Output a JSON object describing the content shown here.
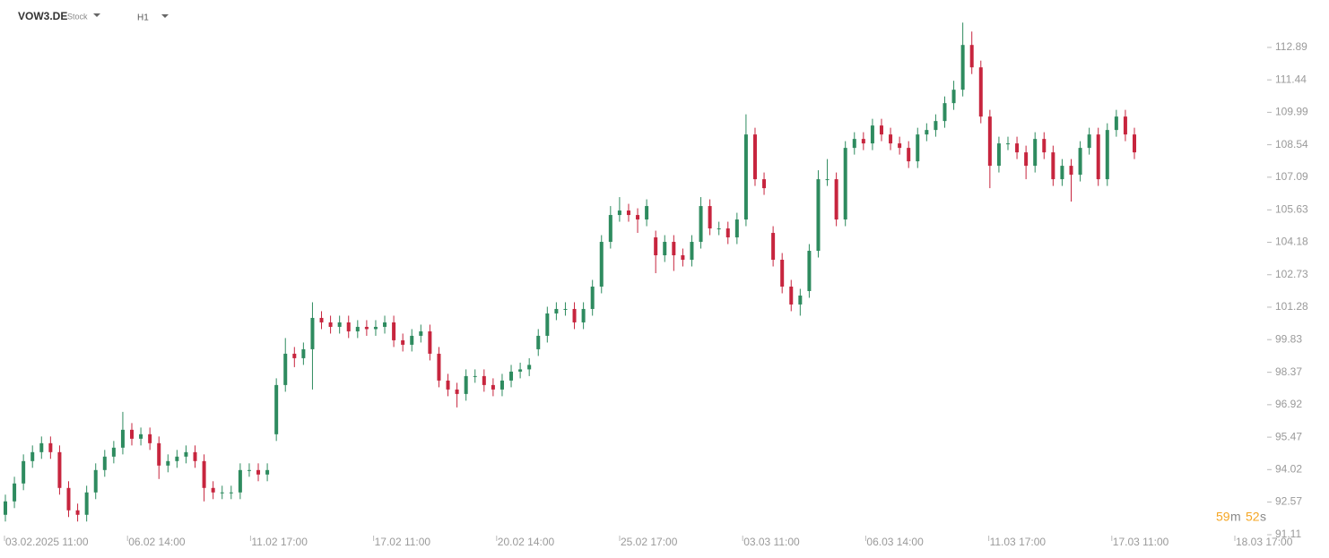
{
  "header": {
    "symbol": "VOW3.DE",
    "kind": "Stock",
    "timeframe": "H1"
  },
  "countdown": {
    "minutes": "59",
    "m": "m",
    "seconds": "52",
    "s": "s"
  },
  "chart_data": {
    "type": "candlestick",
    "up_color": "#2e8b5f",
    "down_color": "#c7253e",
    "ylim": [
      91.11,
      115.01
    ],
    "yticks": [
      91.11,
      92.57,
      94.02,
      95.47,
      96.92,
      98.37,
      99.83,
      101.28,
      102.73,
      104.18,
      105.63,
      107.09,
      108.54,
      109.99,
      111.44,
      112.89
    ],
    "x_labels": [
      "03.02.2025  11:00",
      "06.02  14:00",
      "11.02  17:00",
      "17.02  11:00",
      "20.02  14:00",
      "25.02  17:00",
      "03.03  11:00",
      "06.03  14:00",
      "11.03  17:00",
      "17.03  11:00",
      "18.03  17:00"
    ],
    "open": [
      92.0,
      92.6,
      93.4,
      94.4,
      94.8,
      95.2,
      94.8,
      93.2,
      92.2,
      92.0,
      93.0,
      94.0,
      94.6,
      95.0,
      95.8,
      95.4,
      95.6,
      95.2,
      94.2,
      94.4,
      94.6,
      94.8,
      94.4,
      93.2,
      93.0,
      93.0,
      93.0,
      94.0,
      94.0,
      93.8,
      95.6,
      97.8,
      99.2,
      99.0,
      99.4,
      100.8,
      100.6,
      100.4,
      100.6,
      100.2,
      100.4,
      100.3,
      100.4,
      100.6,
      99.8,
      99.6,
      100.0,
      100.2,
      99.2,
      98.0,
      97.6,
      97.4,
      98.2,
      98.2,
      97.8,
      97.6,
      98.0,
      98.4,
      98.5,
      99.4,
      100.0,
      101.0,
      101.2,
      101.2,
      100.6,
      101.2,
      102.2,
      104.2,
      105.4,
      105.6,
      105.4,
      105.2,
      104.4,
      103.6,
      104.2,
      103.6,
      103.4,
      104.2,
      105.8,
      104.8,
      104.8,
      104.4,
      105.2,
      109.0,
      107.0,
      104.6,
      103.4,
      102.2,
      101.4,
      102.0,
      103.8,
      107.0,
      107.0,
      105.2,
      108.4,
      108.8,
      108.6,
      109.4,
      109.0,
      108.6,
      108.4,
      107.8,
      109.0,
      109.2,
      109.6,
      110.4,
      111.0,
      113.0,
      112.0,
      109.8,
      107.6,
      108.6,
      108.6,
      108.2,
      107.6,
      108.8,
      108.2,
      107.0,
      107.6,
      107.2,
      108.4,
      109.0,
      107.0,
      109.2,
      109.8,
      109.0
    ],
    "high": [
      92.9,
      93.7,
      94.7,
      95.1,
      95.5,
      95.5,
      95.1,
      93.5,
      92.5,
      93.3,
      94.3,
      94.9,
      95.3,
      96.6,
      96.1,
      95.9,
      95.9,
      95.5,
      94.7,
      94.9,
      95.1,
      95.1,
      94.7,
      93.5,
      93.3,
      93.3,
      94.3,
      94.3,
      94.3,
      94.3,
      98.1,
      99.9,
      99.5,
      99.7,
      101.5,
      101.1,
      100.9,
      100.9,
      100.9,
      100.7,
      100.7,
      100.7,
      100.9,
      100.9,
      100.1,
      100.3,
      100.5,
      100.5,
      99.5,
      98.3,
      97.9,
      98.5,
      98.5,
      98.5,
      98.1,
      98.3,
      98.7,
      98.8,
      99.0,
      100.3,
      101.3,
      101.5,
      101.5,
      101.5,
      101.5,
      102.5,
      104.5,
      105.8,
      106.2,
      105.9,
      105.7,
      106.1,
      104.7,
      104.5,
      104.5,
      103.9,
      104.5,
      106.2,
      106.1,
      105.1,
      105.1,
      105.5,
      109.9,
      109.3,
      107.3,
      104.9,
      103.7,
      102.5,
      102.1,
      104.1,
      107.4,
      107.9,
      107.3,
      108.7,
      109.1,
      109.1,
      109.7,
      109.7,
      109.3,
      108.9,
      108.7,
      109.3,
      109.5,
      109.9,
      110.7,
      111.4,
      114.0,
      113.6,
      112.3,
      110.1,
      108.9,
      108.9,
      108.9,
      108.5,
      109.1,
      109.1,
      108.5,
      107.9,
      107.9,
      108.7,
      109.3,
      109.3,
      109.5,
      110.1,
      110.1,
      109.3
    ],
    "low": [
      91.7,
      92.3,
      93.1,
      94.1,
      94.5,
      94.5,
      92.9,
      91.9,
      91.7,
      91.7,
      92.7,
      93.7,
      94.3,
      94.7,
      95.1,
      95.1,
      94.9,
      93.6,
      93.9,
      94.1,
      94.3,
      94.1,
      92.6,
      92.7,
      92.7,
      92.7,
      92.7,
      93.7,
      93.5,
      93.5,
      95.3,
      97.5,
      98.6,
      98.7,
      97.6,
      100.3,
      100.1,
      100.1,
      99.9,
      99.9,
      100.0,
      100.0,
      100.1,
      99.5,
      99.3,
      99.3,
      99.7,
      98.9,
      97.7,
      97.3,
      96.8,
      97.1,
      97.9,
      97.5,
      97.3,
      97.3,
      97.7,
      98.1,
      98.2,
      99.1,
      99.7,
      100.7,
      100.9,
      100.3,
      100.3,
      100.9,
      101.9,
      103.9,
      105.1,
      105.1,
      104.6,
      104.9,
      102.8,
      103.3,
      102.9,
      103.1,
      103.1,
      103.9,
      104.5,
      104.5,
      104.1,
      104.1,
      104.9,
      106.7,
      106.3,
      103.1,
      101.9,
      101.1,
      100.9,
      101.7,
      103.5,
      106.7,
      104.9,
      104.9,
      108.1,
      108.3,
      108.3,
      108.7,
      108.3,
      108.1,
      107.5,
      107.5,
      108.7,
      108.9,
      109.3,
      110.1,
      110.7,
      111.7,
      109.5,
      106.6,
      107.3,
      108.3,
      107.9,
      107.0,
      107.3,
      107.9,
      106.7,
      106.7,
      106.0,
      106.9,
      108.1,
      106.7,
      106.7,
      108.9,
      108.7,
      107.9
    ],
    "close": [
      92.6,
      93.4,
      94.4,
      94.8,
      95.2,
      94.8,
      93.2,
      92.2,
      92.0,
      93.0,
      94.0,
      94.6,
      95.0,
      95.8,
      95.4,
      95.6,
      95.2,
      94.2,
      94.4,
      94.6,
      94.8,
      94.4,
      93.2,
      93.0,
      93.0,
      93.0,
      94.0,
      94.0,
      93.8,
      94.0,
      97.8,
      99.2,
      99.0,
      99.4,
      100.8,
      100.6,
      100.4,
      100.6,
      100.2,
      100.4,
      100.3,
      100.4,
      100.6,
      99.8,
      99.6,
      100.0,
      100.2,
      99.2,
      98.0,
      97.6,
      97.4,
      98.2,
      98.2,
      97.8,
      97.6,
      98.0,
      98.4,
      98.5,
      98.7,
      100.0,
      101.0,
      101.2,
      101.2,
      100.6,
      101.2,
      102.2,
      104.2,
      105.4,
      105.6,
      105.4,
      105.2,
      105.8,
      103.6,
      104.2,
      103.6,
      103.4,
      104.2,
      105.8,
      104.8,
      104.8,
      104.4,
      105.2,
      109.0,
      107.0,
      106.6,
      103.4,
      102.2,
      101.4,
      101.8,
      103.8,
      107.0,
      107.0,
      105.2,
      108.4,
      108.8,
      108.6,
      109.4,
      109.0,
      108.6,
      108.4,
      107.8,
      109.0,
      109.2,
      109.6,
      110.4,
      111.0,
      113.0,
      112.0,
      109.8,
      107.6,
      108.6,
      108.6,
      108.2,
      107.6,
      108.8,
      108.2,
      107.0,
      107.6,
      107.2,
      108.4,
      109.0,
      107.0,
      109.2,
      109.8,
      109.0,
      108.2
    ]
  }
}
